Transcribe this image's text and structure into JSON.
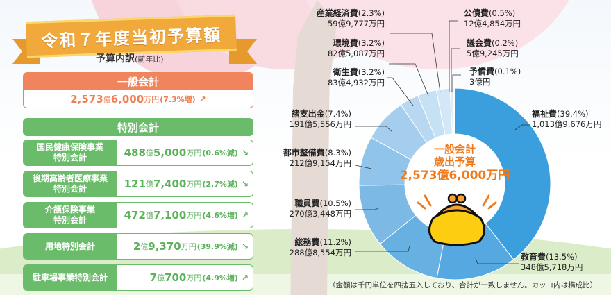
{
  "title": "令和７年度当初予算額",
  "subtitle": {
    "main": "予算内訳",
    "sub": "(前年比)"
  },
  "general_account": {
    "label": "一般会計",
    "oku": "2,573",
    "oku_unit": "億",
    "man": "6,000",
    "man_unit": "万円",
    "change": "(7.3%増)",
    "arrow": "↗"
  },
  "special_accounts": {
    "label": "特別会計",
    "items": [
      {
        "name": "国民健康保険事業\n特別会計",
        "oku": "488",
        "man": "5,000",
        "change": "(0.6%減)",
        "arrow": "↘"
      },
      {
        "name": "後期高齢者医療事業\n特別会計",
        "oku": "121",
        "man": "7,400",
        "change": "(2.7%減)",
        "arrow": "↘"
      },
      {
        "name": "介護保険事業\n特別会計",
        "oku": "472",
        "man": "7,100",
        "change": "(4.6%増)",
        "arrow": "↗"
      },
      {
        "name": "用地特別会計",
        "oku": "2",
        "man": "9,370",
        "change": "(39.9%減)",
        "arrow": "↘"
      },
      {
        "name": "駐車場事業特別会計",
        "oku": "7",
        "man": "700",
        "change": "(4.9%増)",
        "arrow": "↗"
      }
    ],
    "oku_unit": "億",
    "man_unit": "万円"
  },
  "donut_center": {
    "line1": "一般会計",
    "line2": "歳出予算",
    "total": "2,573億6,000万円"
  },
  "labels": [
    {
      "name": "福祉費",
      "pct": "(39.4%)",
      "amount": "1,013億9,676万円"
    },
    {
      "name": "教育費",
      "pct": "(13.5%)",
      "amount": "348億5,718万円"
    },
    {
      "name": "総務費",
      "pct": "(11.2%)",
      "amount": "288億8,554万円"
    },
    {
      "name": "職員費",
      "pct": "(10.5%)",
      "amount": "270億3,448万円"
    },
    {
      "name": "都市整備費",
      "pct": "(8.3%)",
      "amount": "212億9,154万円"
    },
    {
      "name": "諸支出金",
      "pct": "(7.4%)",
      "amount": "191億5,556万円"
    },
    {
      "name": "衛生費",
      "pct": "(3.2%)",
      "amount": "83億4,932万円"
    },
    {
      "name": "環境費",
      "pct": "(3.2%)",
      "amount": "82億5,087万円"
    },
    {
      "name": "産業経済費",
      "pct": "(2.3%)",
      "amount": "59億9,777万円"
    },
    {
      "name": "公債費",
      "pct": "(0.5%)",
      "amount": "12億4,854万円"
    },
    {
      "name": "議会費",
      "pct": "(0.2%)",
      "amount": "5億9,245万円"
    },
    {
      "name": "予備費",
      "pct": "(0.1%)",
      "amount": "3億円"
    }
  ],
  "note": "（金額は千円単位を四捨五入しており、合計が一致しません。カッコ内は構成比）",
  "colors": {
    "general": "#ef845d",
    "special": "#6abb6a",
    "ribbon": "#f0a93a",
    "center_text": "#f07a1a",
    "slices": [
      "#3a9fdc",
      "#55a8e0",
      "#67b0e2",
      "#7db9e5",
      "#91c4ea",
      "#a4cdee",
      "#b8d8f1",
      "#c6e0f4",
      "#d3e7f7",
      "#dfeef9",
      "#e8f3fb",
      "#f0f7fd"
    ]
  },
  "chart_data": {
    "type": "pie",
    "title": "一般会計 歳出予算 2,573億6,000万円",
    "categories": [
      "福祉費",
      "教育費",
      "総務費",
      "職員費",
      "都市整備費",
      "諸支出金",
      "衛生費",
      "環境費",
      "産業経済費",
      "公債費",
      "議会費",
      "予備費"
    ],
    "values": [
      39.4,
      13.5,
      11.2,
      10.5,
      8.3,
      7.4,
      3.2,
      3.2,
      2.3,
      0.5,
      0.2,
      0.1
    ],
    "amounts_man_yen": [
      10139676,
      3485718,
      2888554,
      2703448,
      2129154,
      1915556,
      834932,
      825087,
      599777,
      124854,
      59245,
      30000
    ],
    "unit": "%",
    "donut": true,
    "start": "top, clockwise"
  }
}
